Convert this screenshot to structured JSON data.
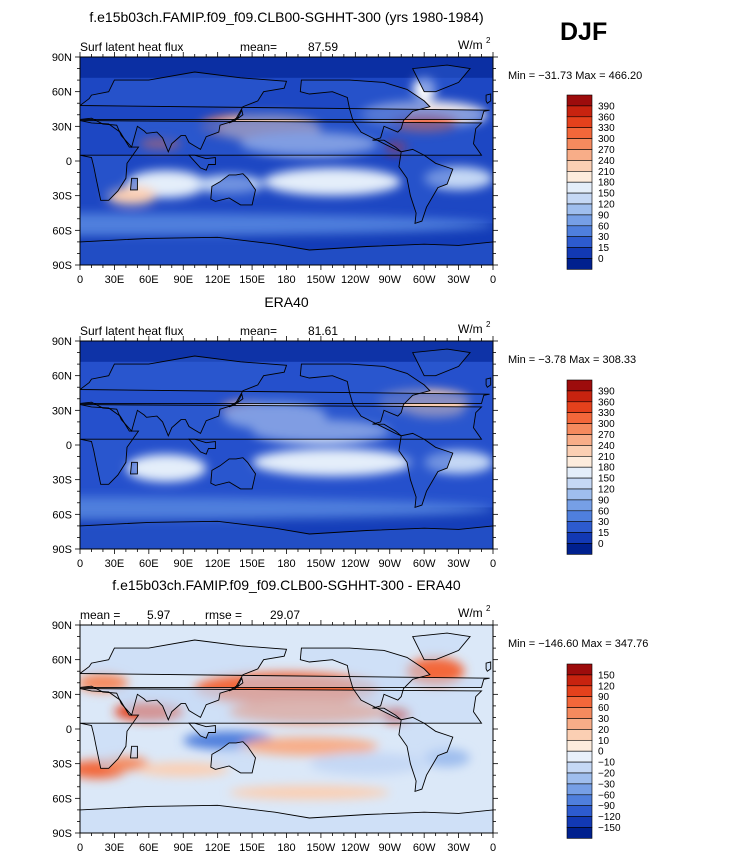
{
  "season": "DJF",
  "chart_data": [
    {
      "type": "heatmap",
      "title": "f.e15b03ch.FAMIP.f09_f09.CLB00-SGHHT-300 (yrs 1980-1984)",
      "left_label": "Surf latent heat flux",
      "stat_label": "mean=",
      "stat_value": "87.59",
      "units": "W/m",
      "units_exp": "2",
      "minmax": "Min = −31.73 Max = 466.20",
      "x_ticks": [
        "0",
        "30E",
        "60E",
        "90E",
        "120E",
        "150E",
        "180",
        "150W",
        "120W",
        "90W",
        "60W",
        "30W",
        "0"
      ],
      "y_ticks": [
        "90N",
        "60N",
        "30N",
        "0",
        "30S",
        "60S",
        "90S"
      ],
      "xlim": [
        0,
        360
      ],
      "ylim": [
        -90,
        90
      ],
      "levels": [
        "390",
        "360",
        "330",
        "300",
        "270",
        "240",
        "210",
        "180",
        "150",
        "120",
        "90",
        "60",
        "30",
        "15",
        "0"
      ],
      "colors": [
        "#9d0c0c",
        "#c8230f",
        "#e5411c",
        "#f3673a",
        "#f58a5e",
        "#f8ad88",
        "#fbcfb3",
        "#fdecdd",
        "#e4eefa",
        "#c5d8f5",
        "#9fbeee",
        "#769fe6",
        "#4f7fdd",
        "#2d5bcf",
        "#1239b4",
        "#00208e"
      ],
      "background_color": "#1d47c3"
    },
    {
      "type": "heatmap",
      "title": "ERA40",
      "left_label": "Surf latent heat flux",
      "stat_label": "mean=",
      "stat_value": "81.61",
      "units": "W/m",
      "units_exp": "2",
      "minmax": "Min =  −3.78 Max = 308.33",
      "x_ticks": [
        "0",
        "30E",
        "60E",
        "90E",
        "120E",
        "150E",
        "180",
        "150W",
        "120W",
        "90W",
        "60W",
        "30W",
        "0"
      ],
      "y_ticks": [
        "90N",
        "60N",
        "30N",
        "0",
        "30S",
        "60S",
        "90S"
      ],
      "xlim": [
        0,
        360
      ],
      "ylim": [
        -90,
        90
      ],
      "levels": [
        "390",
        "360",
        "330",
        "300",
        "270",
        "240",
        "210",
        "180",
        "150",
        "120",
        "90",
        "60",
        "30",
        "15",
        "0"
      ],
      "colors": [
        "#9d0c0c",
        "#c8230f",
        "#e5411c",
        "#f3673a",
        "#f58a5e",
        "#f8ad88",
        "#fbcfb3",
        "#fdecdd",
        "#e4eefa",
        "#c5d8f5",
        "#9fbeee",
        "#769fe6",
        "#4f7fdd",
        "#2d5bcf",
        "#1239b4",
        "#00208e"
      ],
      "background_color": "#2550cc"
    },
    {
      "type": "heatmap",
      "title": "f.e15b03ch.FAMIP.f09_f09.CLB00-SGHHT-300 - ERA40",
      "left_label": "mean =",
      "left_value": "5.97",
      "stat_label": "rmse =",
      "stat_value": "29.07",
      "units": "W/m",
      "units_exp": "2",
      "minmax": "Min = −146.60 Max = 347.76",
      "x_ticks": [
        "0",
        "30E",
        "60E",
        "90E",
        "120E",
        "150E",
        "180",
        "150W",
        "120W",
        "90W",
        "60W",
        "30W",
        "0"
      ],
      "y_ticks": [
        "90N",
        "60N",
        "30N",
        "0",
        "30S",
        "60S",
        "90S"
      ],
      "xlim": [
        0,
        360
      ],
      "ylim": [
        -90,
        90
      ],
      "levels": [
        "150",
        "120",
        "90",
        "60",
        "30",
        "20",
        "10",
        "0",
        "−10",
        "−20",
        "−30",
        "−60",
        "−90",
        "−120",
        "−150"
      ],
      "colors": [
        "#9d0c0c",
        "#c8230f",
        "#e5411c",
        "#f3673a",
        "#f58a5e",
        "#f8ad88",
        "#fbcfb3",
        "#fdecdd",
        "#e8f0fb",
        "#c5d8f5",
        "#9fbeee",
        "#769fe6",
        "#4f7fdd",
        "#2d5bcf",
        "#1239b4",
        "#00208e"
      ],
      "background_color": "#dbe8f8"
    }
  ]
}
